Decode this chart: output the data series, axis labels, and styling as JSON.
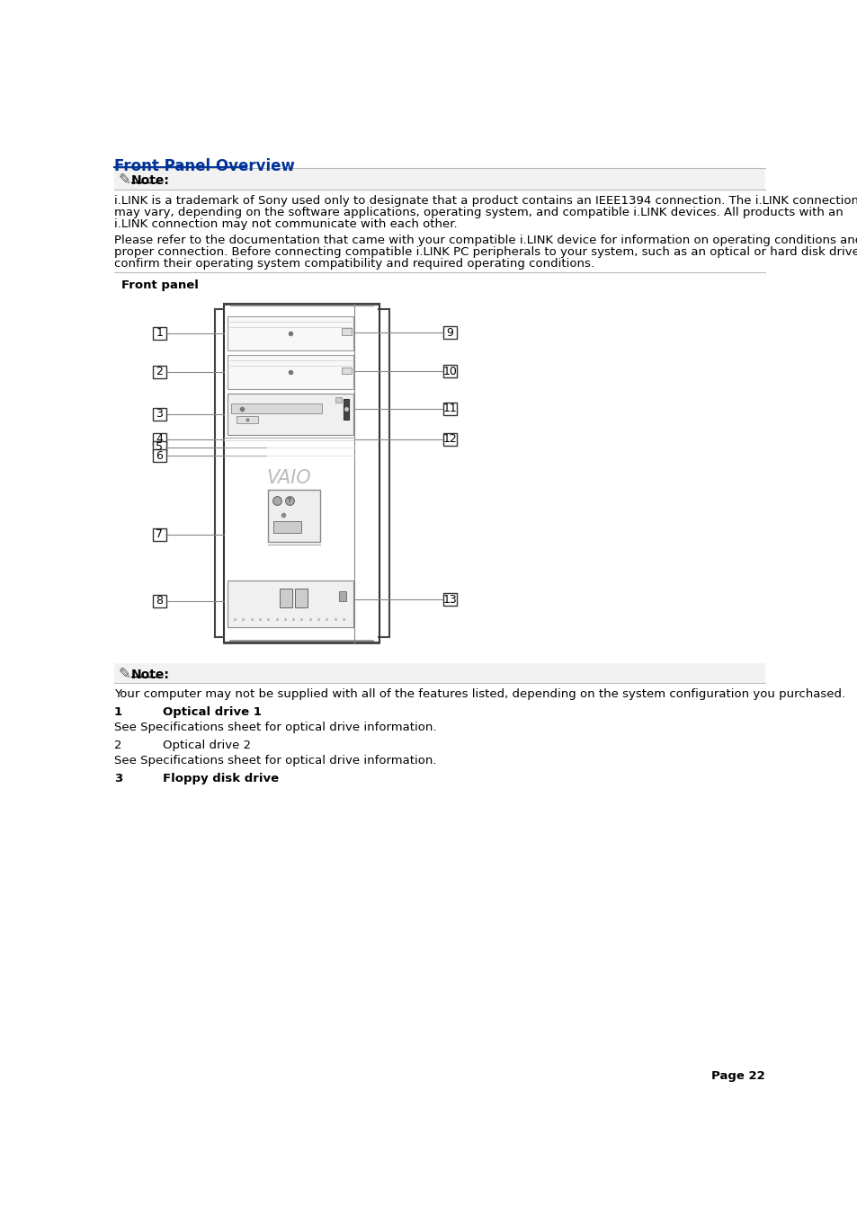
{
  "title": "Front Panel Overview",
  "title_color": "#003399",
  "page_bg": "#ffffff",
  "note_bg": "#f0f0f0",
  "note1_body_lines": [
    "i.LINK is a trademark of Sony used only to designate that a product contains an IEEE1394 connection. The i.LINK connection",
    "may vary, depending on the software applications, operating system, and compatible i.LINK devices. All products with an",
    "i.LINK connection may not communicate with each other."
  ],
  "para1_lines": [
    "Please refer to the documentation that came with your compatible i.LINK device for information on operating conditions and",
    "proper connection. Before connecting compatible i.LINK PC peripherals to your system, such as an optical or hard disk drive,",
    "confirm their operating system compatibility and required operating conditions."
  ],
  "front_panel_label": "Front panel",
  "note2_body": "Your computer may not be supplied with all of the features listed, depending on the system configuration you purchased.",
  "item1_num": "1",
  "item1_label": "Optical drive 1",
  "item1_bold": true,
  "item1_desc": "See Specifications sheet for optical drive information.",
  "item2_num": "2",
  "item2_label": "Optical drive 2",
  "item2_bold": false,
  "item2_desc": "See Specifications sheet for optical drive information.",
  "item3_num": "3",
  "item3_label": "Floppy disk drive",
  "item3_bold": true,
  "page_num": "Page 22"
}
